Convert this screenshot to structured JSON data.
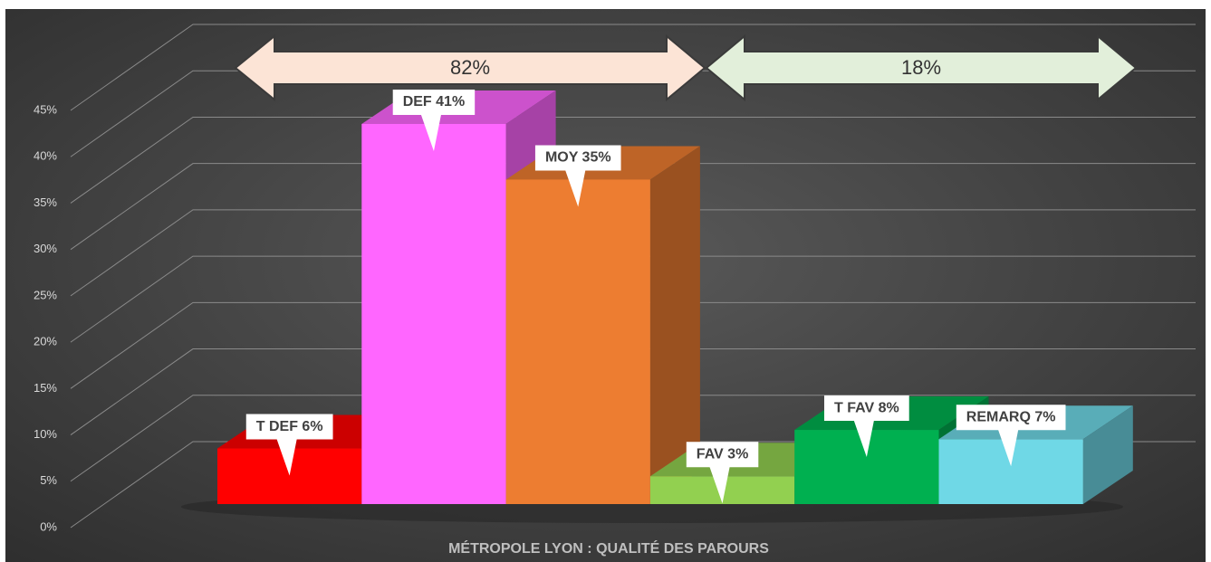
{
  "chart_data": {
    "type": "bar3d",
    "title": "MÉTROPOLE LYON : QUALITÉ DES PAROURS",
    "annotations": [
      "82%",
      "18%"
    ],
    "categories": [
      "T DEF",
      "DEF",
      "MOY",
      "FAV",
      "T FAV",
      "REMARQ"
    ],
    "values": [
      6,
      41,
      35,
      3,
      8,
      7
    ],
    "value_labels": [
      "T DEF 6%",
      "DEF 41%",
      "MOY 35%",
      "FAV 3%",
      "T FAV 8%",
      "REMARQ 7%"
    ],
    "colors": [
      "#ff0000",
      "#ff66ff",
      "#ed7d31",
      "#92d050",
      "#00b050",
      "#6fd8e6"
    ],
    "ylim": [
      0,
      45
    ],
    "yticks": [
      {
        "value": 0,
        "label": "0%"
      },
      {
        "value": 5,
        "label": "5%"
      },
      {
        "value": 10,
        "label": "10%"
      },
      {
        "value": 15,
        "label": "15%"
      },
      {
        "value": 20,
        "label": "20%"
      },
      {
        "value": 25,
        "label": "25%"
      },
      {
        "value": 30,
        "label": "30%"
      },
      {
        "value": 35,
        "label": "35%"
      },
      {
        "value": 40,
        "label": "40%"
      },
      {
        "value": 45,
        "label": "45%"
      }
    ],
    "grid": true
  }
}
